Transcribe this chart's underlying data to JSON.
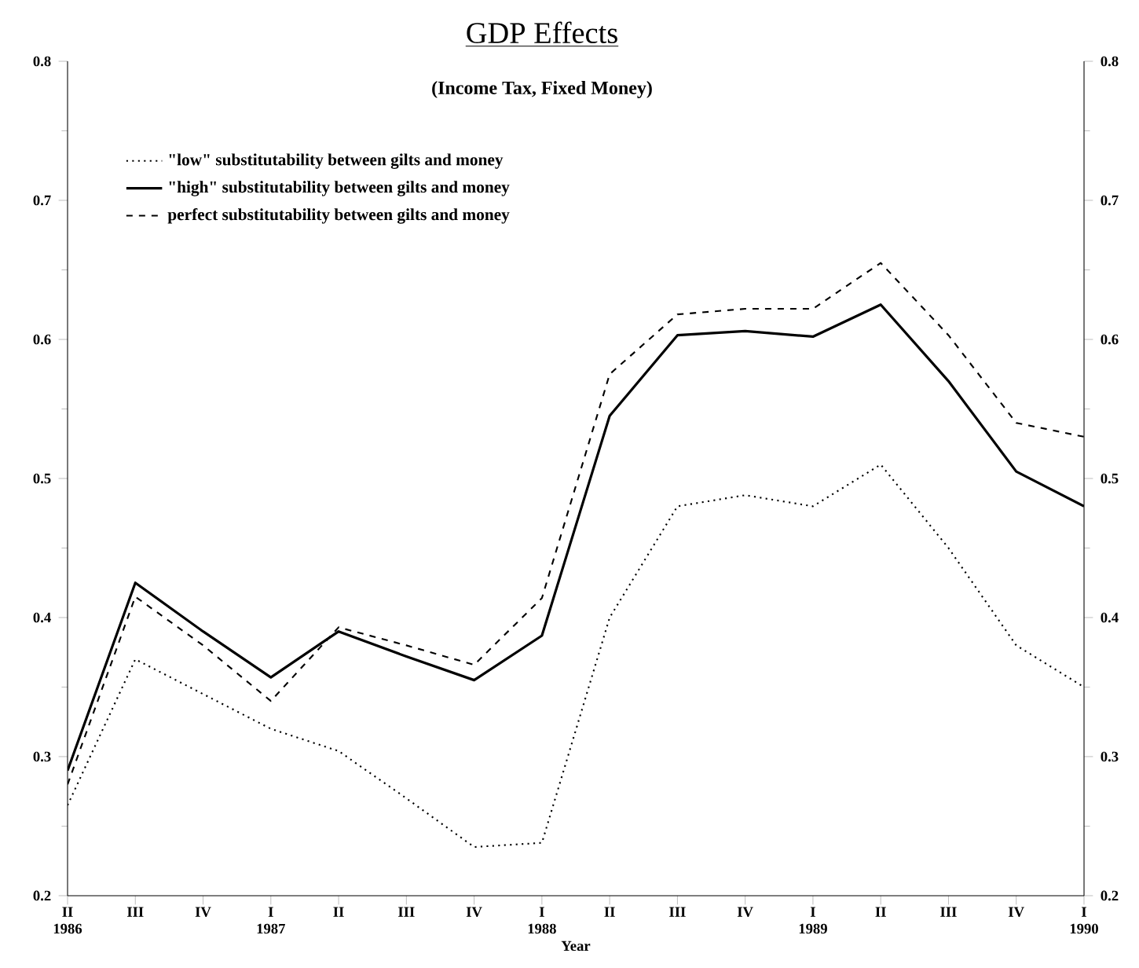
{
  "chart_data": {
    "type": "line",
    "title": "GDP Effects",
    "subtitle": "(Income Tax, Fixed Money)",
    "xlabel": "Year",
    "categories": [
      "II 1986",
      "III",
      "IV",
      "I 1987",
      "II",
      "III",
      "IV",
      "I 1988",
      "II",
      "III",
      "IV",
      "I 1989",
      "II",
      "III",
      "IV",
      "I 1990"
    ],
    "series": [
      {
        "name": "\"low\" substitutability between gilts and money",
        "color": "#000000",
        "line_style": "dotted",
        "values": [
          0.265,
          0.37,
          0.345,
          0.32,
          0.304,
          0.27,
          0.235,
          0.238,
          0.4,
          0.48,
          0.488,
          0.48,
          0.51,
          0.45,
          0.38,
          0.35
        ]
      },
      {
        "name": "\"high\" substitutability between gilts and money",
        "color": "#000000",
        "line_style": "solid",
        "values": [
          0.29,
          0.425,
          0.39,
          0.357,
          0.39,
          0.372,
          0.355,
          0.387,
          0.545,
          0.603,
          0.606,
          0.602,
          0.625,
          0.57,
          0.505,
          0.48
        ]
      },
      {
        "name": "perfect substitutability between gilts and money",
        "color": "#000000",
        "line_style": "dashed",
        "values": [
          0.28,
          0.415,
          0.38,
          0.34,
          0.393,
          0.38,
          0.366,
          0.414,
          0.575,
          0.618,
          0.622,
          0.622,
          0.655,
          0.603,
          0.54,
          0.53
        ]
      }
    ],
    "ylim": [
      0.2,
      0.8
    ],
    "yticks": [
      0.2,
      0.3,
      0.4,
      0.5,
      0.6,
      0.7,
      0.8
    ],
    "y2lim": [
      0.2,
      0.8
    ],
    "y2ticks": [
      0.2,
      0.3,
      0.4,
      0.5,
      0.6,
      0.7,
      0.8
    ],
    "legend": "top left",
    "grid": false,
    "marker": "none"
  }
}
